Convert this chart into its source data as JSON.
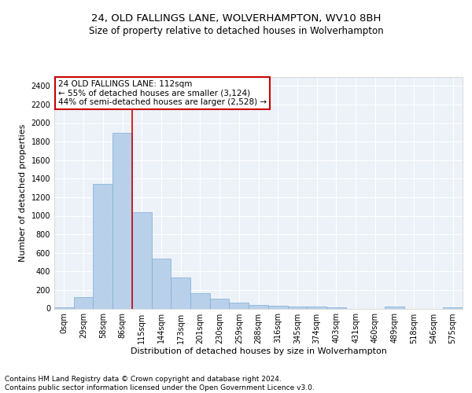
{
  "title1": "24, OLD FALLINGS LANE, WOLVERHAMPTON, WV10 8BH",
  "title2": "Size of property relative to detached houses in Wolverhampton",
  "xlabel": "Distribution of detached houses by size in Wolverhampton",
  "ylabel": "Number of detached properties",
  "footer1": "Contains HM Land Registry data © Crown copyright and database right 2024.",
  "footer2": "Contains public sector information licensed under the Open Government Licence v3.0.",
  "bar_labels": [
    "0sqm",
    "29sqm",
    "58sqm",
    "86sqm",
    "115sqm",
    "144sqm",
    "173sqm",
    "201sqm",
    "230sqm",
    "259sqm",
    "288sqm",
    "316sqm",
    "345sqm",
    "374sqm",
    "403sqm",
    "431sqm",
    "460sqm",
    "489sqm",
    "518sqm",
    "546sqm",
    "575sqm"
  ],
  "bar_values": [
    15,
    120,
    1340,
    1890,
    1040,
    540,
    335,
    165,
    105,
    60,
    38,
    28,
    25,
    18,
    10,
    0,
    0,
    18,
    0,
    0,
    15
  ],
  "bar_color": "#b8d0ea",
  "bar_edge_color": "#7aafd4",
  "vline_x_idx": 3.5,
  "vline_color": "#cc0000",
  "annotation_line1": "24 OLD FALLINGS LANE: 112sqm",
  "annotation_line2": "← 55% of detached houses are smaller (3,124)",
  "annotation_line3": "44% of semi-detached houses are larger (2,528) →",
  "annotation_box_color": "white",
  "annotation_box_edge_color": "#cc0000",
  "ylim": [
    0,
    2500
  ],
  "yticks": [
    0,
    200,
    400,
    600,
    800,
    1000,
    1200,
    1400,
    1600,
    1800,
    2000,
    2200,
    2400
  ],
  "bg_color": "#edf2f9",
  "grid_color": "white",
  "title1_fontsize": 9.5,
  "title2_fontsize": 8.5,
  "xlabel_fontsize": 8,
  "ylabel_fontsize": 8,
  "tick_fontsize": 7,
  "annotation_fontsize": 7.5,
  "footer_fontsize": 6.5
}
